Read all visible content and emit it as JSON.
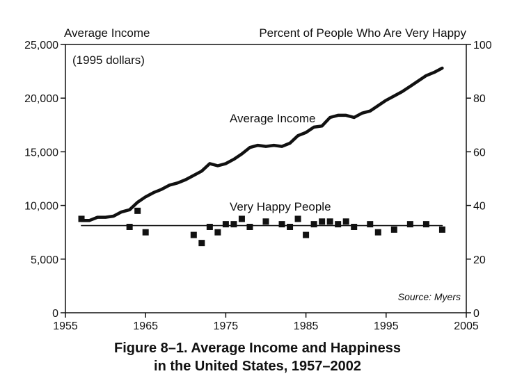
{
  "chart_data": {
    "type": "line",
    "caption_line1": "Figure 8–1.  Average Income and Happiness",
    "caption_line2": "in the United States, 1957–2002",
    "y_left_label": "Average Income",
    "y_left_sublabel": "(1995 dollars)",
    "y_right_label": "Percent of People Who Are Very Happy",
    "source": "Source: Myers",
    "xlim": [
      1955,
      2005
    ],
    "ylim_left": [
      0,
      25000
    ],
    "ylim_right": [
      0,
      100
    ],
    "x_ticks": [
      "1955",
      "1965",
      "1975",
      "1985",
      "1995",
      "2005"
    ],
    "x_tick_values": [
      1955,
      1965,
      1975,
      1985,
      1995,
      2005
    ],
    "y_left_ticks": [
      "0",
      "5,000",
      "10,000",
      "15,000",
      "20,000",
      "25,000"
    ],
    "y_left_tick_values": [
      0,
      5000,
      10000,
      15000,
      20000,
      25000
    ],
    "y_right_ticks": [
      "0",
      "20",
      "40",
      "60",
      "80",
      "100"
    ],
    "y_right_tick_values": [
      0,
      20,
      40,
      60,
      80,
      100
    ],
    "grid": false,
    "series": [
      {
        "name": "Average Income",
        "axis": "left",
        "style": "line",
        "x": [
          1957,
          1958,
          1959,
          1960,
          1961,
          1962,
          1963,
          1964,
          1965,
          1966,
          1967,
          1968,
          1969,
          1970,
          1971,
          1972,
          1973,
          1974,
          1975,
          1976,
          1977,
          1978,
          1979,
          1980,
          1981,
          1982,
          1983,
          1984,
          1985,
          1986,
          1987,
          1988,
          1989,
          1990,
          1991,
          1992,
          1993,
          1994,
          1995,
          1996,
          1997,
          1998,
          1999,
          2000,
          2001,
          2002
        ],
        "values": [
          8600,
          8600,
          8900,
          8900,
          9000,
          9400,
          9600,
          10300,
          10800,
          11200,
          11500,
          11900,
          12100,
          12400,
          12800,
          13200,
          13900,
          13700,
          13900,
          14300,
          14800,
          15400,
          15600,
          15500,
          15600,
          15500,
          15800,
          16500,
          16800,
          17300,
          17400,
          18200,
          18400,
          18400,
          18200,
          18600,
          18800,
          19300,
          19800,
          20200,
          20600,
          21100,
          21600,
          22100,
          22400,
          22800
        ]
      },
      {
        "name": "Very Happy People",
        "axis": "right",
        "style": "markers",
        "x": [
          1957,
          1963,
          1964,
          1965,
          1971,
          1972,
          1973,
          1974,
          1975,
          1976,
          1977,
          1978,
          1980,
          1982,
          1983,
          1984,
          1985,
          1986,
          1987,
          1988,
          1989,
          1990,
          1991,
          1993,
          1994,
          1996,
          1998,
          2000,
          2002
        ],
        "values": [
          35,
          32,
          38,
          30,
          29,
          26,
          32,
          30,
          33,
          33,
          35,
          32,
          34,
          33,
          32,
          35,
          29,
          33,
          34,
          34,
          33,
          34,
          32,
          33,
          30,
          31,
          33,
          33,
          31
        ]
      },
      {
        "name": "Very Happy People trend",
        "axis": "right",
        "style": "trendline",
        "x": [
          1957,
          2002
        ],
        "values": [
          32.5,
          32.5
        ]
      }
    ]
  }
}
